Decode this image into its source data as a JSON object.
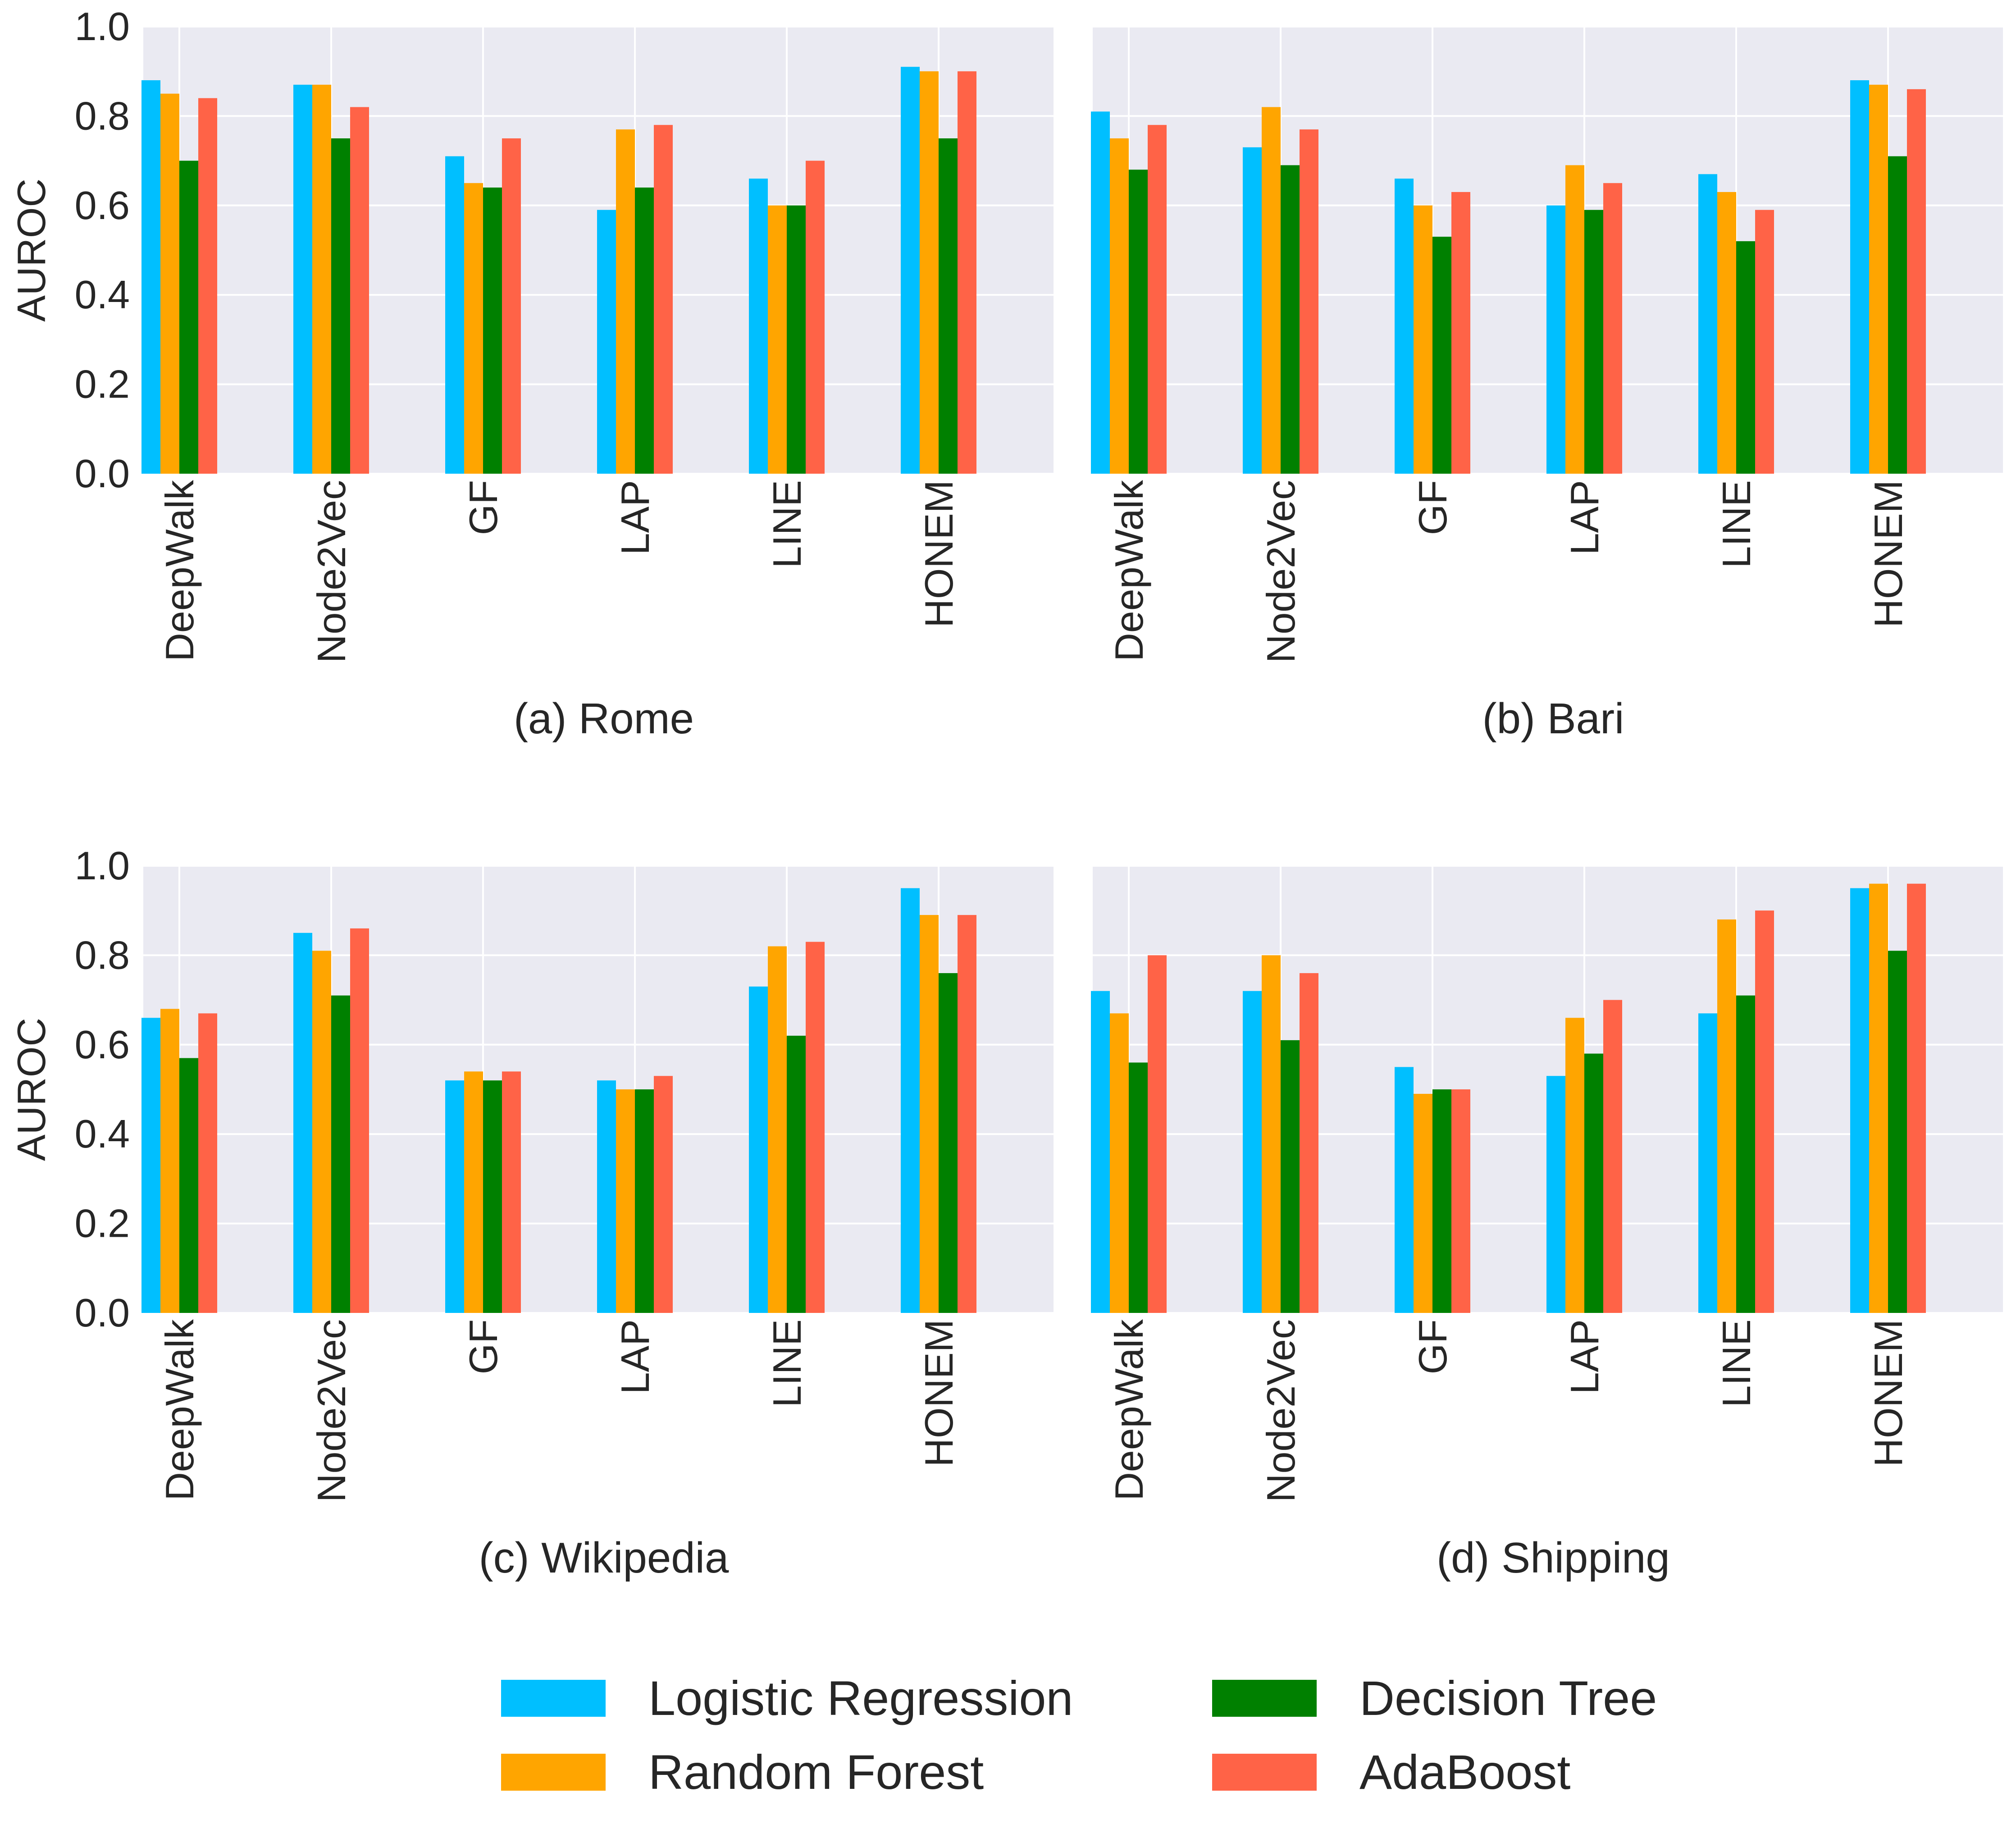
{
  "y_axis_label": "AUROC",
  "legend_placement": "bottom-center",
  "chart_data": [
    {
      "type": "bar",
      "subplot_label": "(a) Rome",
      "categories": [
        "DeepWalk",
        "Node2Vec",
        "GF",
        "LAP",
        "LINE",
        "HONEM"
      ],
      "ylabel": "AUROC",
      "ylim": [
        0,
        1.0
      ],
      "yticks": [
        "0.0",
        "0.2",
        "0.4",
        "0.6",
        "0.8",
        "1.0"
      ],
      "grid": true,
      "series": [
        {
          "name": "Logistic Regression",
          "color": "#00bfff",
          "values": [
            0.88,
            0.87,
            0.71,
            0.59,
            0.66,
            0.91
          ]
        },
        {
          "name": "Random Forest",
          "color": "#ffa500",
          "values": [
            0.85,
            0.87,
            0.65,
            0.77,
            0.6,
            0.9
          ]
        },
        {
          "name": "Decision Tree",
          "color": "#008000",
          "values": [
            0.7,
            0.75,
            0.64,
            0.64,
            0.6,
            0.75
          ]
        },
        {
          "name": "AdaBoost",
          "color": "#ff6347",
          "values": [
            0.84,
            0.82,
            0.75,
            0.78,
            0.7,
            0.9
          ]
        }
      ]
    },
    {
      "type": "bar",
      "subplot_label": "(b) Bari",
      "categories": [
        "DeepWalk",
        "Node2Vec",
        "GF",
        "LAP",
        "LINE",
        "HONEM"
      ],
      "ylabel": "",
      "ylim": [
        0,
        1.0
      ],
      "yticks": [],
      "grid": true,
      "series": [
        {
          "name": "Logistic Regression",
          "color": "#00bfff",
          "values": [
            0.81,
            0.73,
            0.66,
            0.6,
            0.67,
            0.88
          ]
        },
        {
          "name": "Random Forest",
          "color": "#ffa500",
          "values": [
            0.75,
            0.82,
            0.6,
            0.69,
            0.63,
            0.87
          ]
        },
        {
          "name": "Decision Tree",
          "color": "#008000",
          "values": [
            0.68,
            0.69,
            0.53,
            0.59,
            0.52,
            0.71
          ]
        },
        {
          "name": "AdaBoost",
          "color": "#ff6347",
          "values": [
            0.78,
            0.77,
            0.63,
            0.65,
            0.59,
            0.86
          ]
        }
      ]
    },
    {
      "type": "bar",
      "subplot_label": "(c) Wikipedia",
      "categories": [
        "DeepWalk",
        "Node2Vec",
        "GF",
        "LAP",
        "LINE",
        "HONEM"
      ],
      "ylabel": "AUROC",
      "ylim": [
        0,
        1.0
      ],
      "yticks": [
        "0.0",
        "0.2",
        "0.4",
        "0.6",
        "0.8",
        "1.0"
      ],
      "grid": true,
      "series": [
        {
          "name": "Logistic Regression",
          "color": "#00bfff",
          "values": [
            0.66,
            0.85,
            0.52,
            0.52,
            0.73,
            0.95
          ]
        },
        {
          "name": "Random Forest",
          "color": "#ffa500",
          "values": [
            0.68,
            0.81,
            0.54,
            0.5,
            0.82,
            0.89
          ]
        },
        {
          "name": "Decision Tree",
          "color": "#008000",
          "values": [
            0.57,
            0.71,
            0.52,
            0.5,
            0.62,
            0.76
          ]
        },
        {
          "name": "AdaBoost",
          "color": "#ff6347",
          "values": [
            0.67,
            0.86,
            0.54,
            0.53,
            0.83,
            0.89
          ]
        }
      ]
    },
    {
      "type": "bar",
      "subplot_label": "(d) Shipping",
      "categories": [
        "DeepWalk",
        "Node2Vec",
        "GF",
        "LAP",
        "LINE",
        "HONEM"
      ],
      "ylabel": "",
      "ylim": [
        0,
        1.0
      ],
      "yticks": [],
      "grid": true,
      "series": [
        {
          "name": "Logistic Regression",
          "color": "#00bfff",
          "values": [
            0.72,
            0.72,
            0.55,
            0.53,
            0.67,
            0.95
          ]
        },
        {
          "name": "Random Forest",
          "color": "#ffa500",
          "values": [
            0.67,
            0.8,
            0.49,
            0.66,
            0.88,
            0.96
          ]
        },
        {
          "name": "Decision Tree",
          "color": "#008000",
          "values": [
            0.56,
            0.61,
            0.5,
            0.58,
            0.71,
            0.81
          ]
        },
        {
          "name": "AdaBoost",
          "color": "#ff6347",
          "values": [
            0.8,
            0.76,
            0.5,
            0.7,
            0.9,
            0.96
          ]
        }
      ]
    }
  ],
  "legend": {
    "items": [
      {
        "label": "Logistic Regression",
        "color": "#00bfff"
      },
      {
        "label": "Decision Tree",
        "color": "#008000"
      },
      {
        "label": "Random Forest",
        "color": "#ffa500"
      },
      {
        "label": "AdaBoost",
        "color": "#ff6347"
      }
    ]
  },
  "style": {
    "plot_background": "#eaeaf2",
    "grid_color": "#ffffff",
    "text_color": "#262626"
  }
}
